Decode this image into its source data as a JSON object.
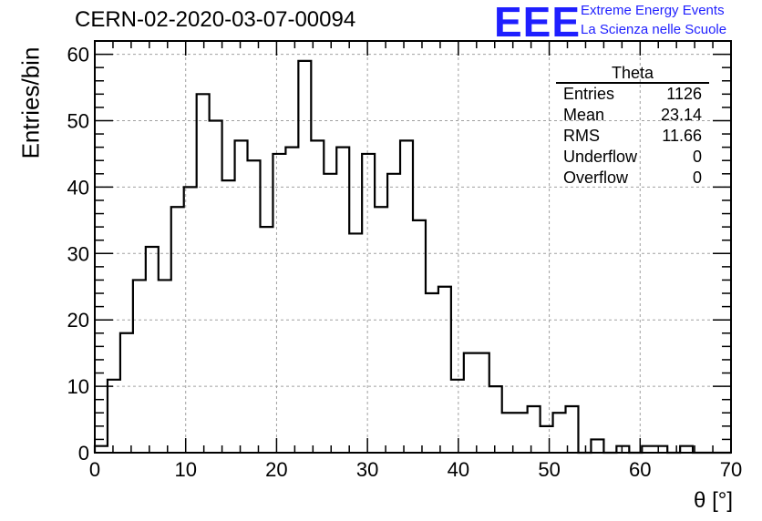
{
  "title": "CERN-02-2020-03-07-00094",
  "brand": {
    "logo": "EEE",
    "line1": "Extreme Energy Events",
    "line2": "La Scienza nelle Scuole",
    "color": "#1f1fff"
  },
  "stats": {
    "title": "Theta",
    "rows": [
      {
        "label": "Entries",
        "value": "1126"
      },
      {
        "label": "Mean",
        "value": "23.14"
      },
      {
        "label": "RMS",
        "value": "11.66"
      },
      {
        "label": "Underflow",
        "value": "0"
      },
      {
        "label": "Overflow",
        "value": "0"
      }
    ]
  },
  "chart_data": {
    "type": "histogram",
    "xlabel": "θ [°]",
    "ylabel": "Entries/bin",
    "xlim": [
      0,
      70
    ],
    "ylim": [
      0,
      62
    ],
    "bin_width": 1.4,
    "x_ticks": [
      0,
      10,
      20,
      30,
      40,
      50,
      60,
      70
    ],
    "y_ticks": [
      0,
      10,
      20,
      30,
      40,
      50,
      60
    ],
    "grid": true,
    "values": [
      1,
      11,
      18,
      26,
      31,
      26,
      37,
      40,
      54,
      50,
      41,
      47,
      44,
      34,
      45,
      46,
      59,
      47,
      42,
      46,
      33,
      45,
      37,
      42,
      47,
      35,
      24,
      25,
      11,
      15,
      15,
      10,
      6,
      6,
      7,
      4,
      6,
      7,
      0,
      2,
      0,
      1,
      0,
      1,
      1,
      0,
      1,
      0,
      0,
      0
    ]
  }
}
